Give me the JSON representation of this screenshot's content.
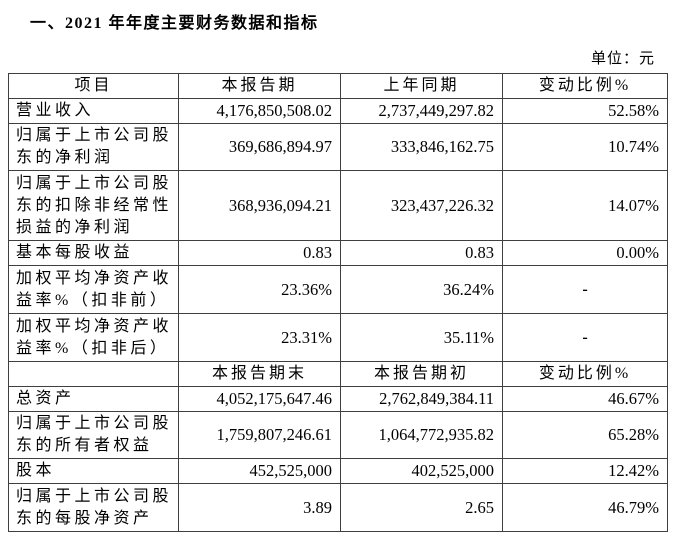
{
  "page": {
    "title": "一、2021 年年度主要财务数据和指标",
    "unit_label": "单位：元"
  },
  "table": {
    "header_period": {
      "item": "项目",
      "current": "本报告期",
      "prior": "上年同期",
      "change": "变动比例%"
    },
    "period_rows": [
      {
        "item": "营业收入",
        "current": "4,176,850,508.02",
        "prior": "2,737,449,297.82",
        "change": "52.58%"
      },
      {
        "item": "归属于上市公司股东的净利润",
        "current": "369,686,894.97",
        "prior": "333,846,162.75",
        "change": "10.74%"
      },
      {
        "item": "归属于上市公司股东的扣除非经常性损益的净利润",
        "current": "368,936,094.21",
        "prior": "323,437,226.32",
        "change": "14.07%"
      },
      {
        "item": "基本每股收益",
        "current": "0.83",
        "prior": "0.83",
        "change": "0.00%"
      },
      {
        "item": "加权平均净资产收益率%（扣非前）",
        "current": "23.36%",
        "prior": "36.24%",
        "change": "-"
      },
      {
        "item": "加权平均净资产收益率%（扣非后）",
        "current": "23.31%",
        "prior": "35.11%",
        "change": "-"
      }
    ],
    "header_balance": {
      "item": "",
      "current": "本报告期末",
      "prior": "本报告期初",
      "change": "变动比例%"
    },
    "balance_rows": [
      {
        "item": "总资产",
        "current": "4,052,175,647.46",
        "prior": "2,762,849,384.11",
        "change": "46.67%"
      },
      {
        "item": "归属于上市公司股东的所有者权益",
        "current": "1,759,807,246.61",
        "prior": "1,064,772,935.82",
        "change": "65.28%"
      },
      {
        "item": "股本",
        "current": "452,525,000",
        "prior": "402,525,000",
        "change": "12.42%"
      },
      {
        "item": "归属于上市公司股东的每股净资产",
        "current": "3.89",
        "prior": "2.65",
        "change": "46.79%"
      }
    ]
  }
}
